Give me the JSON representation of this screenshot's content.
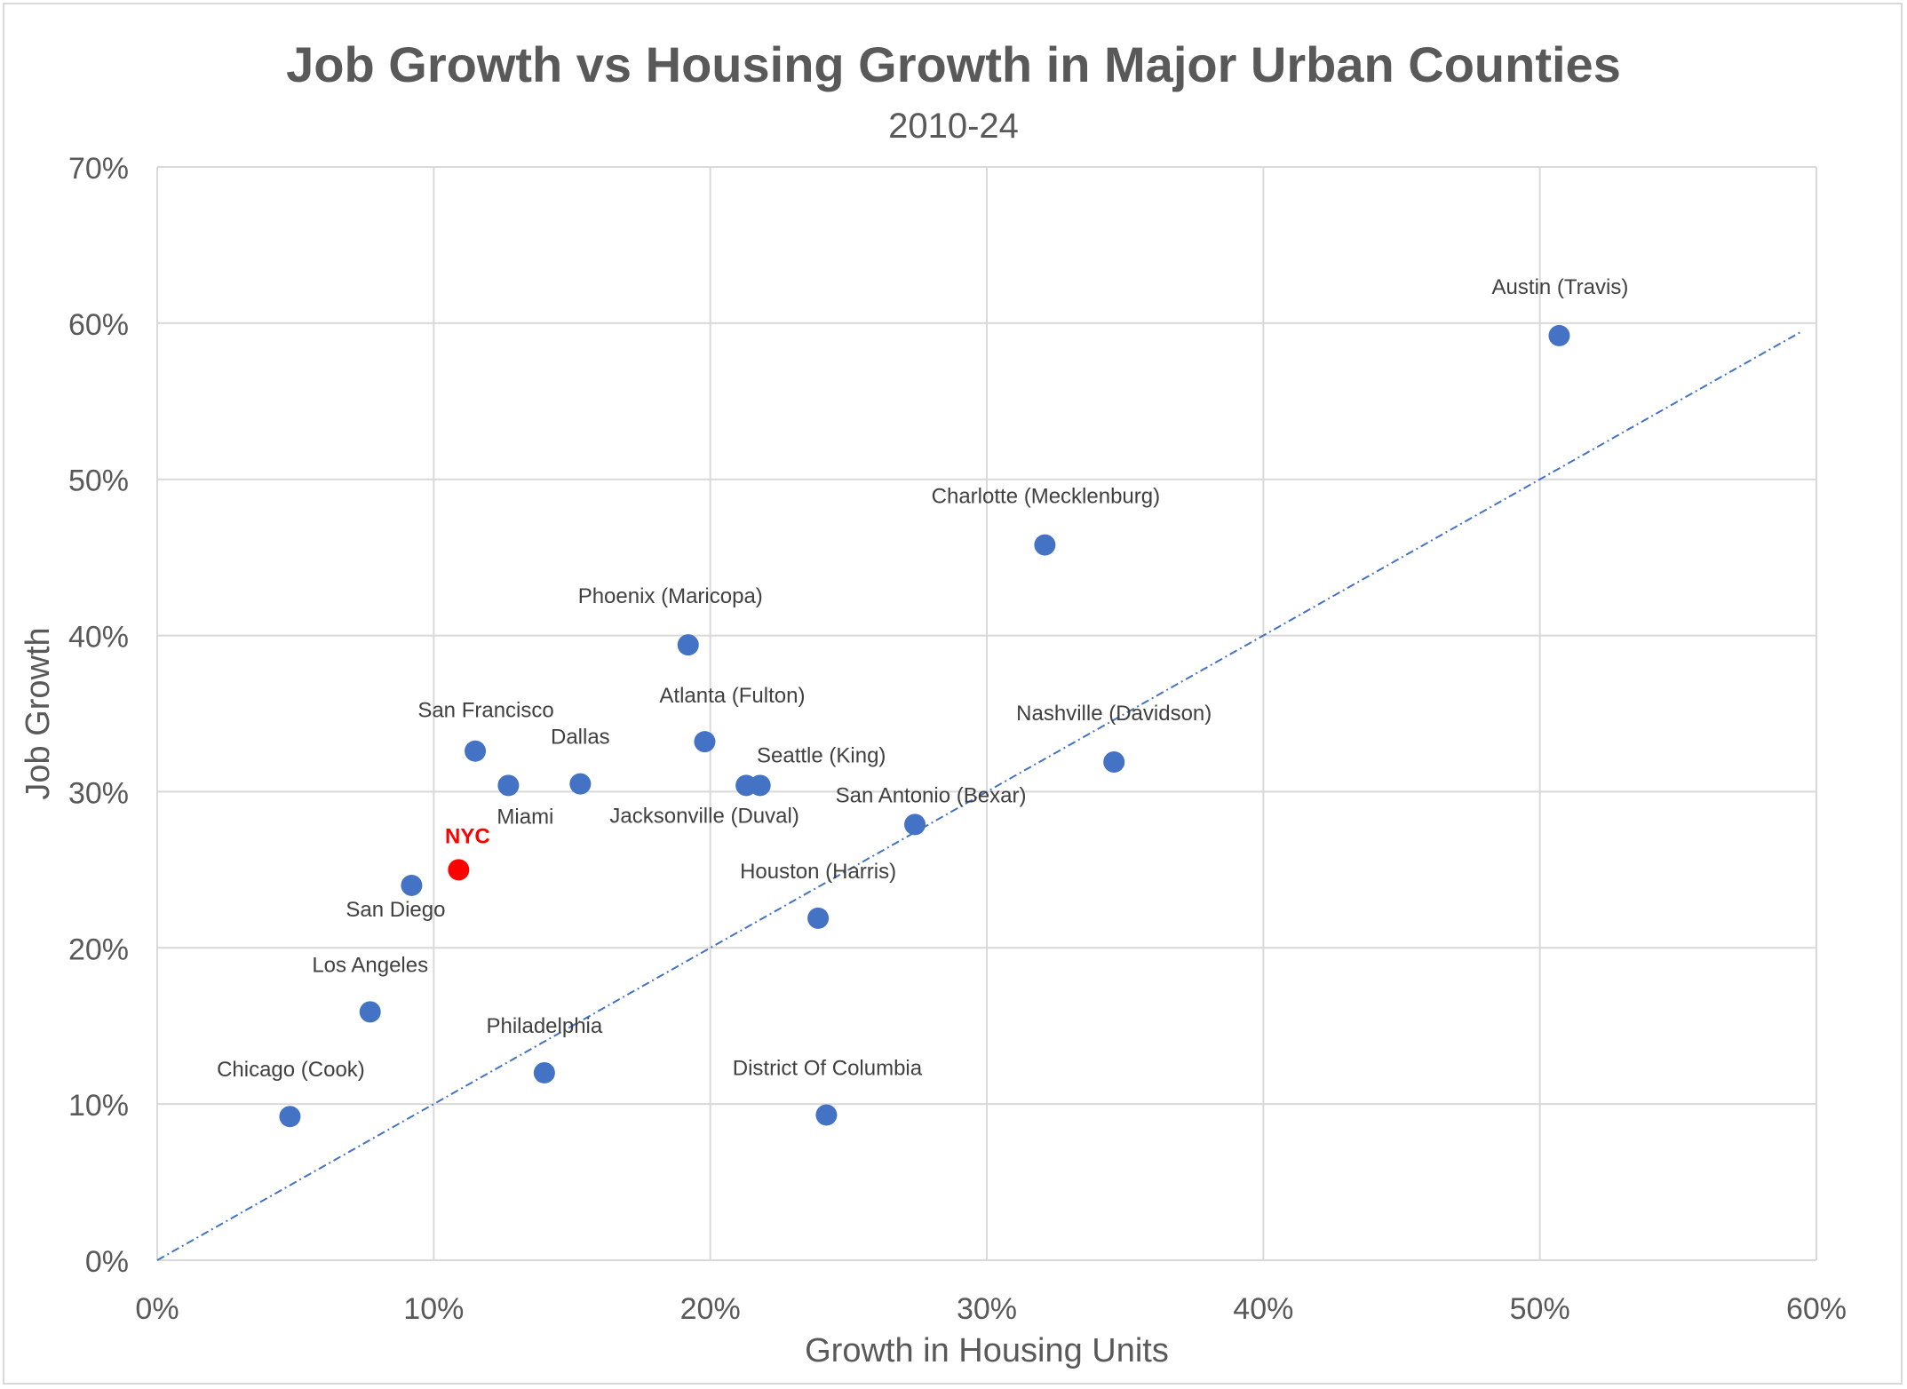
{
  "chart_data": {
    "type": "scatter",
    "title": "Job Growth vs Housing Growth in Major Urban Counties",
    "subtitle": "2010-24",
    "xlabel": "Growth in Housing Units",
    "ylabel": "Job Growth",
    "xlim": [
      0,
      0.6
    ],
    "ylim": [
      0,
      0.7
    ],
    "x_ticks": [
      "0%",
      "10%",
      "20%",
      "30%",
      "40%",
      "50%",
      "60%"
    ],
    "y_ticks": [
      "0%",
      "10%",
      "20%",
      "30%",
      "40%",
      "50%",
      "60%",
      "70%"
    ],
    "grid": true,
    "reference_line": {
      "style": "dash-dot",
      "x": [
        0,
        0.595
      ],
      "y": [
        0,
        0.595
      ],
      "color": "#4472C4"
    },
    "colors": {
      "point": "#4472C4",
      "highlight": "#FF0000",
      "grid": "#D9D9D9",
      "text": "#595959"
    },
    "points": [
      {
        "label": "Austin (Travis)",
        "x": 0.507,
        "y": 0.592
      },
      {
        "label": "Charlotte (Mecklenburg)",
        "x": 0.321,
        "y": 0.458
      },
      {
        "label": "Phoenix (Maricopa)",
        "x": 0.192,
        "y": 0.394
      },
      {
        "label": "Nashville (Davidson)",
        "x": 0.346,
        "y": 0.319
      },
      {
        "label": "San Francisco",
        "x": 0.115,
        "y": 0.326
      },
      {
        "label": "Atlanta (Fulton)",
        "x": 0.198,
        "y": 0.332
      },
      {
        "label": "Seattle (King)",
        "x": 0.218,
        "y": 0.304
      },
      {
        "label": "Jacksonville (Duval)",
        "x": 0.213,
        "y": 0.304
      },
      {
        "label": "Dallas",
        "x": 0.153,
        "y": 0.305
      },
      {
        "label": "Miami",
        "x": 0.127,
        "y": 0.304
      },
      {
        "label": "San Antonio (Bexar)",
        "x": 0.274,
        "y": 0.279
      },
      {
        "label": "NYC",
        "x": 0.109,
        "y": 0.25,
        "highlight": true
      },
      {
        "label": "San Diego",
        "x": 0.092,
        "y": 0.24
      },
      {
        "label": "Houston (Harris)",
        "x": 0.239,
        "y": 0.219
      },
      {
        "label": "Los Angeles",
        "x": 0.077,
        "y": 0.159
      },
      {
        "label": "Philadelphia",
        "x": 0.14,
        "y": 0.12
      },
      {
        "label": "Chicago (Cook)",
        "x": 0.048,
        "y": 0.092
      },
      {
        "label": "District Of Columbia",
        "x": 0.242,
        "y": 0.093
      }
    ]
  }
}
